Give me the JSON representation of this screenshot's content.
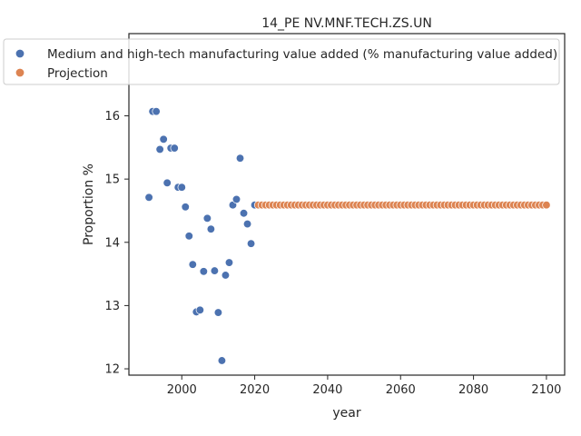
{
  "chart_data": {
    "type": "scatter",
    "title": "14_PE NV.MNF.TECH.ZS.UN",
    "xlabel": "year",
    "ylabel": "Proportion %",
    "xlim": [
      1985.5,
      2105
    ],
    "ylim": [
      11.9,
      17.3
    ],
    "xticks": [
      2000,
      2020,
      2040,
      2060,
      2080,
      2100
    ],
    "yticks": [
      12,
      13,
      14,
      15,
      16
    ],
    "grid": false,
    "legend_position": "top-left",
    "series": [
      {
        "name": "Medium and high-tech manufacturing value added (% manufacturing value added)",
        "color": "#4c72b0",
        "points": [
          [
            1991,
            14.71
          ],
          [
            1992,
            16.07
          ],
          [
            1993,
            16.07
          ],
          [
            1994,
            15.47
          ],
          [
            1995,
            15.63
          ],
          [
            1996,
            14.94
          ],
          [
            1997,
            15.49
          ],
          [
            1998,
            15.49
          ],
          [
            1999,
            14.87
          ],
          [
            2000,
            14.87
          ],
          [
            2001,
            14.56
          ],
          [
            2002,
            14.1
          ],
          [
            2003,
            13.65
          ],
          [
            2004,
            12.9
          ],
          [
            2005,
            12.93
          ],
          [
            2006,
            13.54
          ],
          [
            2007,
            14.38
          ],
          [
            2008,
            14.21
          ],
          [
            2009,
            13.55
          ],
          [
            2010,
            12.89
          ],
          [
            2011,
            12.13
          ],
          [
            2012,
            13.48
          ],
          [
            2013,
            13.68
          ],
          [
            2014,
            14.59
          ],
          [
            2015,
            14.68
          ],
          [
            2016,
            15.33
          ],
          [
            2017,
            14.46
          ],
          [
            2018,
            14.29
          ],
          [
            2019,
            13.98
          ],
          [
            2020,
            14.59
          ]
        ]
      },
      {
        "name": "Projection",
        "color": "#dd8452",
        "x_start": 2021,
        "x_end": 2100,
        "constant_value": 14.59
      }
    ]
  }
}
